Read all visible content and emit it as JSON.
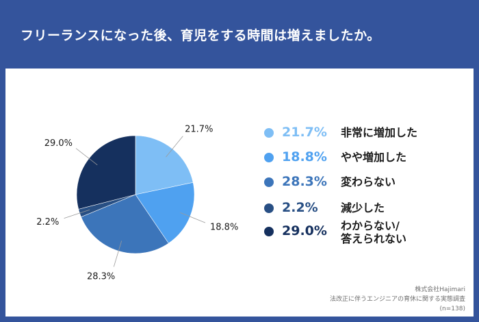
{
  "header": {
    "title": "フリーランスになった後、育児をする時間は増えましたか。"
  },
  "chart_data": {
    "type": "pie",
    "slices": [
      {
        "label": "非常に増加した",
        "value": 21.7,
        "display": "21.7%",
        "color": "#7ebef5"
      },
      {
        "label": "やや増加した",
        "value": 18.8,
        "display": "18.8%",
        "color": "#4fa1f0"
      },
      {
        "label": "変わらない",
        "value": 28.3,
        "display": "28.3%",
        "color": "#3c75ba"
      },
      {
        "label": "減少した",
        "value": 2.2,
        "display": "2.2%",
        "color": "#284f84"
      },
      {
        "label": "わからない/\n答えられない",
        "value": 29.0,
        "display": "29.0%",
        "color": "#15305e"
      }
    ]
  },
  "source": {
    "company": "株式会社Hajimari",
    "survey": "法改正に伴うエンジニアの育休に関する実態調査",
    "n": "(n=138)"
  }
}
